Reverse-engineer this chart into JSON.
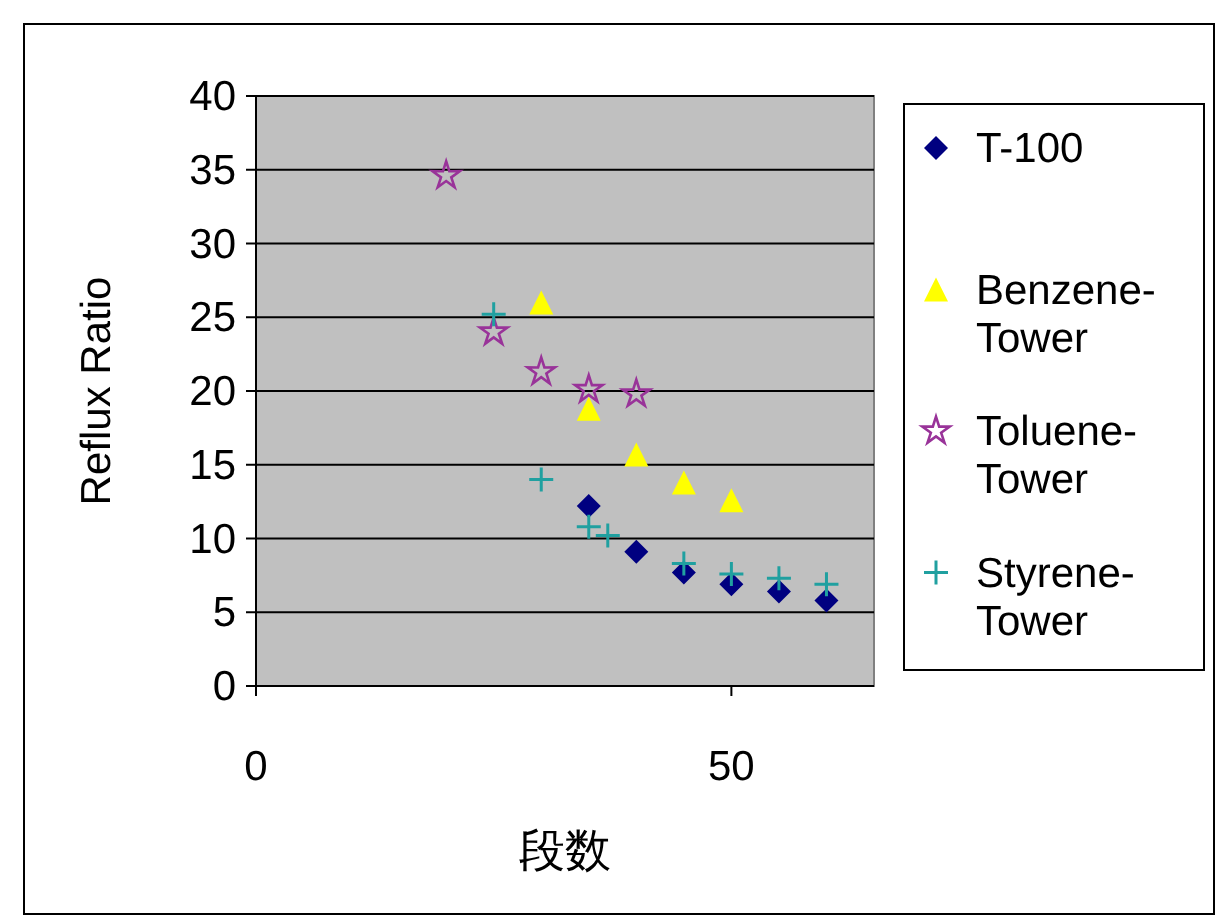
{
  "chart_data": {
    "type": "scatter",
    "xlabel": "段数",
    "ylabel": "Reflux Ratio",
    "xlim": [
      0,
      65
    ],
    "ylim": [
      0,
      40
    ],
    "xticks": [
      0,
      50
    ],
    "yticks": [
      0,
      5,
      10,
      15,
      20,
      25,
      30,
      35,
      40
    ],
    "grid": "y",
    "legend": "right",
    "series": [
      {
        "name": "T-100",
        "color": "#000080",
        "marker": "diamond",
        "x": [
          35,
          40,
          45,
          50,
          55,
          60
        ],
        "values": [
          12.2,
          9.1,
          7.7,
          6.9,
          6.4,
          5.8
        ]
      },
      {
        "name": "Benzene-Tower",
        "color": "#ffff00",
        "marker": "triangle",
        "x": [
          30,
          35,
          40,
          45,
          50
        ],
        "values": [
          26,
          18.8,
          15.7,
          13.8,
          12.6
        ]
      },
      {
        "name": "Toluene-Tower",
        "color": "#993399",
        "marker": "star",
        "x": [
          20,
          25,
          30,
          35,
          40
        ],
        "values": [
          34.6,
          24,
          21.3,
          20.1,
          19.8
        ]
      },
      {
        "name": "Styrene-Tower",
        "color": "#20a0a0",
        "marker": "cross",
        "x": [
          25,
          30,
          35,
          37,
          45,
          50,
          55,
          60
        ],
        "values": [
          25.2,
          14,
          10.8,
          10.2,
          8.3,
          7.6,
          7.3,
          6.9
        ]
      }
    ]
  }
}
